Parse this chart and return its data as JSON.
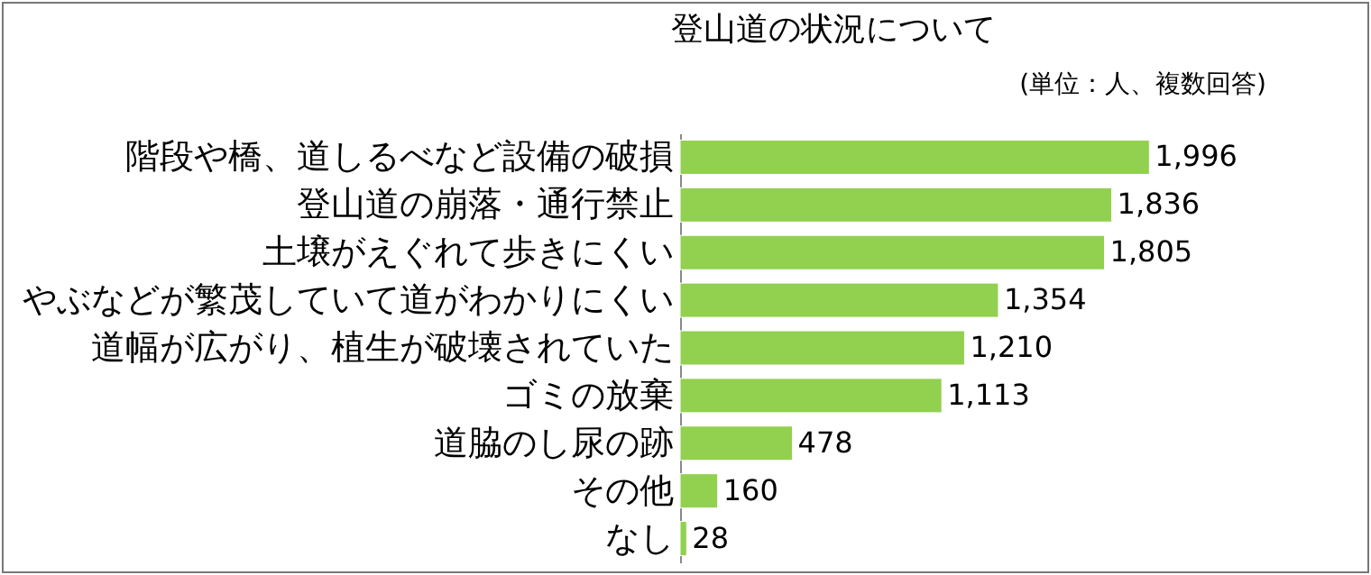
{
  "chart_data": {
    "type": "bar",
    "orientation": "horizontal",
    "title": "登山道の状況について",
    "annotations": [
      "(単位：人、複数回答)"
    ],
    "categories": [
      "階段や橋、道しるべなど設備の破損",
      "登山道の崩落・通行禁止",
      "土壌がえぐれて歩きにくい",
      "やぶなどが繁茂していて道がわかりにくい",
      "道幅が広がり、植生が破壊されていた",
      "ゴミの放棄",
      "道脇のし尿の跡",
      "その他",
      "なし"
    ],
    "values": [
      1996,
      1836,
      1805,
      1354,
      1210,
      1113,
      478,
      160,
      28
    ],
    "value_labels": [
      "1,996",
      "1,836",
      "1,805",
      "1,354",
      "1,210",
      "1,113",
      "478",
      "160",
      "28"
    ],
    "color": "#92d050"
  }
}
